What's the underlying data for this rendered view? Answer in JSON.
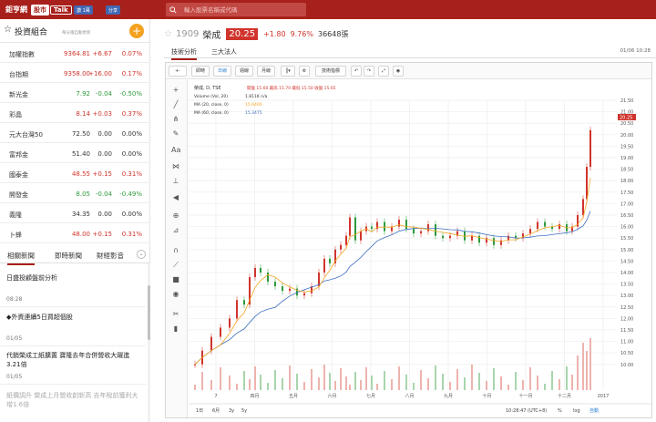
{
  "header": {
    "logo_text": "鉅亨網",
    "logo_box1": "股市",
    "logo_box2": "Talk",
    "like_label": "讚 1萬",
    "share_label": "分享",
    "search_placeholder": "輸入股票名稱或代碼"
  },
  "portfolio": {
    "title": "投資組合",
    "subtitle": "每分鐘自動更新",
    "add_label": "+",
    "rows": [
      {
        "name": "加權指數",
        "price": "9364.81",
        "change": "+6.67",
        "pct": "0.07%",
        "dir": "up"
      },
      {
        "name": "台指期",
        "price": "9358.00",
        "change": "+16.00",
        "pct": "0.17%",
        "dir": "up"
      },
      {
        "name": "新光金",
        "price": "7.92",
        "change": "-0.04",
        "pct": "-0.50%",
        "dir": "down"
      },
      {
        "name": "彩晶",
        "price": "8.14",
        "change": "+0.03",
        "pct": "0.37%",
        "dir": "up"
      },
      {
        "name": "元大台灣50",
        "price": "72.50",
        "change": "0.00",
        "pct": "0.00%",
        "dir": "flat"
      },
      {
        "name": "富邦金",
        "price": "51.40",
        "change": "0.00",
        "pct": "0.00%",
        "dir": "flat"
      },
      {
        "name": "國泰金",
        "price": "48.55",
        "change": "+0.15",
        "pct": "0.31%",
        "dir": "up"
      },
      {
        "name": "開發金",
        "price": "8.05",
        "change": "-0.04",
        "pct": "-0.49%",
        "dir": "down"
      },
      {
        "name": "義隆",
        "price": "34.35",
        "change": "0.00",
        "pct": "0.00%",
        "dir": "flat"
      },
      {
        "name": "卜蜂",
        "price": "48.00",
        "change": "+0.15",
        "pct": "0.31%",
        "dir": "up"
      }
    ]
  },
  "news": {
    "tabs": [
      "相關新聞",
      "即時新聞",
      "財經影音"
    ],
    "more_icon": "chevron-down",
    "items": [
      {
        "title": "日盛投顧盤前分析",
        "time": "08:28"
      },
      {
        "title": "◆外資連續5日買超個股",
        "time": "01/05"
      },
      {
        "title": "代銷榮成工紙擴置 寶隆去年合併營收大躍進3.21倍",
        "time": "01/05"
      },
      {
        "title": "紙價調升 榮成上月營收創新高 去年稅前獲利大增1.6倍",
        "time": ""
      }
    ]
  },
  "stock": {
    "code": "1909",
    "name": "榮成",
    "price": "20.25",
    "change": "+1.80",
    "pct": "9.76%",
    "volume": "36648張"
  },
  "subtabs": {
    "items": [
      "技術分析",
      "三大法人"
    ],
    "date": "01/06 10:28"
  },
  "toolbar": {
    "buttons": [
      "即時",
      "日線",
      "週線",
      "月線",
      "",
      "",
      "技術指標",
      "",
      "",
      "",
      ""
    ]
  },
  "chart_legend": {
    "main": "榮成, D, TSE",
    "ohlc": "開盤 15.60  最高 15.70  最低 15.50  收盤 15.65",
    "vol_label": "Volume (Vol, 20)",
    "vol_value": "1.811K  n/a",
    "ma20_label": "MA (20, close, 0)",
    "ma20_value": "15.6400",
    "ma60_label": "MA (60, close, 0)",
    "ma60_value": "15.3475"
  },
  "chart_axes": {
    "x_labels": [
      "7",
      "四月",
      "五月",
      "六月",
      "七月",
      "八月",
      "九月",
      "十月",
      "十一月",
      "十二月",
      "2017"
    ],
    "y_labels": [
      "21.50",
      "21.00",
      "20.50",
      "20.00",
      "19.50",
      "19.00",
      "18.50",
      "18.00",
      "17.50",
      "17.00",
      "16.50",
      "16.00",
      "15.50",
      "15.00",
      "14.50",
      "14.00",
      "13.50",
      "13.00",
      "12.50",
      "12.00",
      "11.50",
      "11.00",
      "10.50",
      "10.00"
    ],
    "last_price_tag": "20.25",
    "bottom_ranges": [
      "1日",
      "6月",
      "3y",
      "5y"
    ],
    "bottom_time": "10:28:47 (UTC+8)",
    "bottom_opts": [
      "%",
      "log",
      "自動"
    ]
  },
  "colors": {
    "brand": "#a8201b",
    "up": "#d0342c",
    "down": "#2d9a3a",
    "ma20": "#f5a623",
    "ma60": "#3f6fbf"
  }
}
